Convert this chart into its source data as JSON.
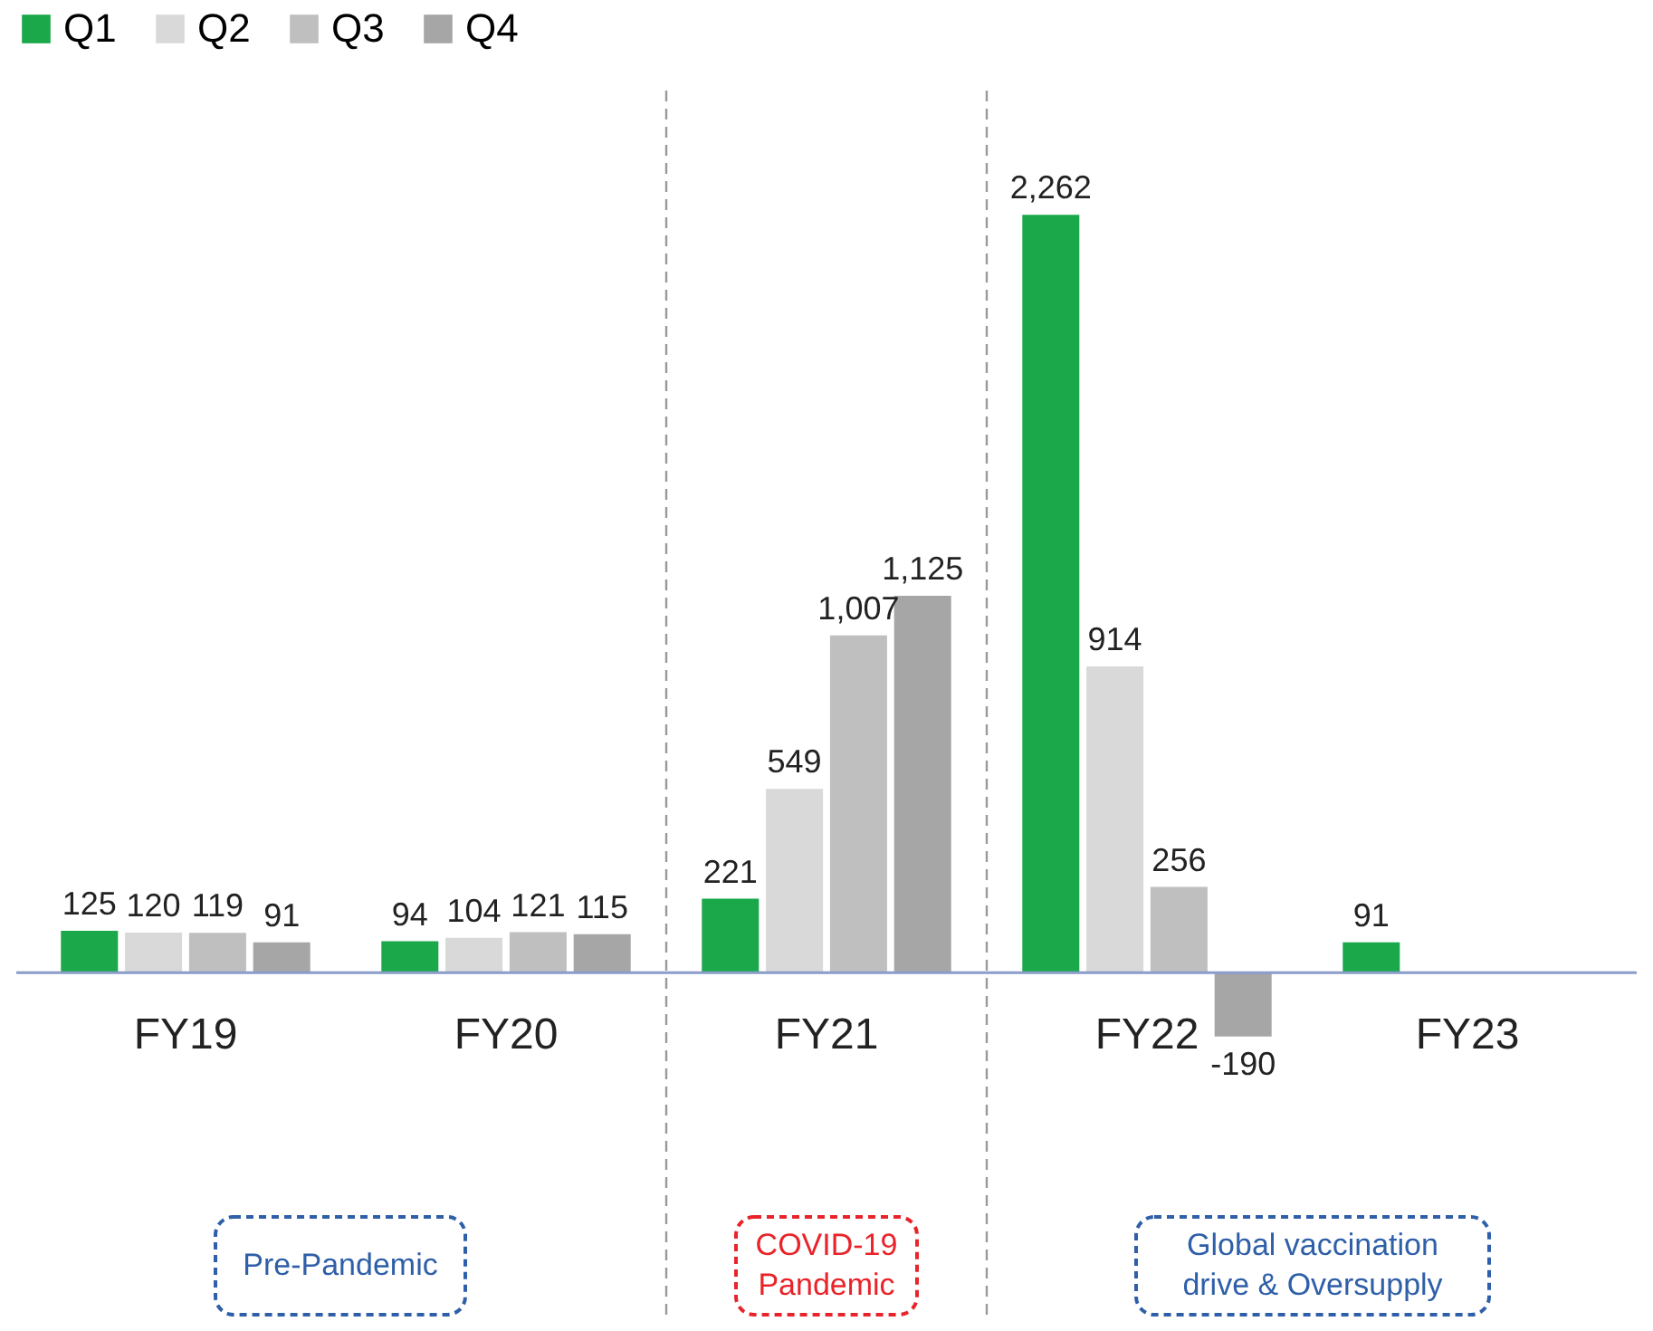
{
  "chart_data": {
    "type": "bar",
    "categories": [
      "FY19",
      "FY20",
      "FY21",
      "FY22",
      "FY23"
    ],
    "series": [
      {
        "name": "Q1",
        "color": "#1aa84b",
        "values": [
          125,
          94,
          221,
          2262,
          91
        ],
        "value_labels": [
          "125",
          "94",
          "221",
          "2,262",
          "91"
        ]
      },
      {
        "name": "Q2",
        "color": "#d9d9d9",
        "values": [
          120,
          104,
          549,
          914,
          null
        ],
        "value_labels": [
          "120",
          "104",
          "549",
          "914",
          null
        ]
      },
      {
        "name": "Q3",
        "color": "#bfbfbf",
        "values": [
          119,
          121,
          1007,
          256,
          null
        ],
        "value_labels": [
          "119",
          "121",
          "1,007",
          "256",
          null
        ]
      },
      {
        "name": "Q4",
        "color": "#a6a6a6",
        "values": [
          91,
          115,
          1125,
          -190,
          null
        ],
        "value_labels": [
          "91",
          "115",
          "1,125",
          "-190",
          null
        ]
      }
    ],
    "legend": "top left",
    "annotations": [
      "Pre-Pandemic",
      "COVID-19\nPandemic",
      "Global vaccination\ndrive & Oversupply"
    ]
  }
}
